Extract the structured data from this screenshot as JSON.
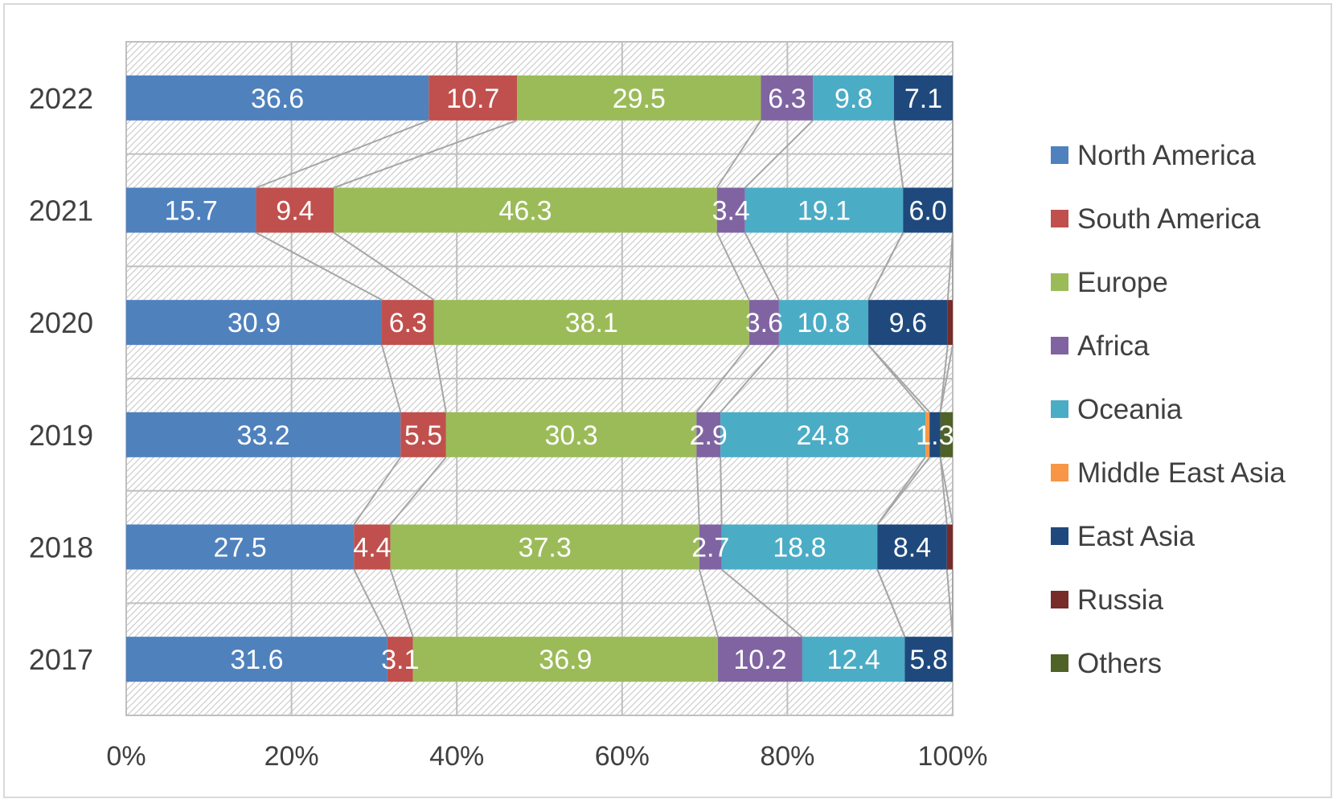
{
  "chart_data": {
    "type": "bar",
    "orientation": "horizontal",
    "stacking": "percent",
    "categories": [
      "2022",
      "2021",
      "2020",
      "2019",
      "2018",
      "2017"
    ],
    "x_ticks": [
      "0%",
      "20%",
      "40%",
      "60%",
      "80%",
      "100%"
    ],
    "xlim": [
      0,
      100
    ],
    "grid": true,
    "legend_position": "right",
    "series": [
      {
        "name": "North America",
        "color": "#4F81BD",
        "values": [
          36.6,
          15.7,
          30.9,
          33.2,
          27.5,
          31.6
        ],
        "labels": [
          "36.6",
          "15.7",
          "30.9",
          "33.2",
          "27.5",
          "31.6"
        ]
      },
      {
        "name": "South America",
        "color": "#C0504D",
        "values": [
          10.7,
          9.4,
          6.3,
          5.5,
          4.4,
          3.1
        ],
        "labels": [
          "10.7",
          "9.4",
          "6.3",
          "5.5",
          "4.4",
          "3.1"
        ]
      },
      {
        "name": "Europe",
        "color": "#9BBB59",
        "values": [
          29.5,
          46.3,
          38.1,
          30.3,
          37.3,
          36.9
        ],
        "labels": [
          "29.5",
          "46.3",
          "38.1",
          "30.3",
          "37.3",
          "36.9"
        ]
      },
      {
        "name": "Africa",
        "color": "#8064A2",
        "values": [
          6.3,
          3.4,
          3.6,
          2.9,
          2.7,
          10.2
        ],
        "labels": [
          "6.3",
          "3.4",
          "3.6",
          "2.9",
          "2.7",
          "10.2"
        ]
      },
      {
        "name": "Oceania",
        "color": "#4BACC6",
        "values": [
          9.8,
          19.1,
          10.8,
          24.8,
          18.8,
          12.4
        ],
        "labels": [
          "9.8",
          "19.1",
          "10.8",
          "24.8",
          "18.8",
          "12.4"
        ]
      },
      {
        "name": "Middle East Asia",
        "color": "#F79646",
        "values": [
          0,
          0,
          0,
          0.5,
          0,
          0
        ],
        "labels": [
          "",
          "",
          "",
          "",
          "",
          ""
        ]
      },
      {
        "name": "East Asia",
        "color": "#1F497D",
        "values": [
          7.1,
          6.0,
          9.6,
          1.3,
          8.4,
          5.8
        ],
        "labels": [
          "7.1",
          "6.0",
          "9.6",
          "1.3",
          "8.4",
          "5.8"
        ]
      },
      {
        "name": "Russia",
        "color": "#772C2A",
        "values": [
          0,
          0,
          0.6,
          0,
          0.7,
          0
        ],
        "labels": [
          "",
          "",
          "",
          "",
          "",
          ""
        ]
      },
      {
        "name": "Others",
        "color": "#4F6228",
        "values": [
          0,
          0,
          0,
          1.5,
          0,
          0
        ],
        "labels": [
          "",
          "",
          "",
          "",
          "",
          ""
        ]
      }
    ]
  }
}
